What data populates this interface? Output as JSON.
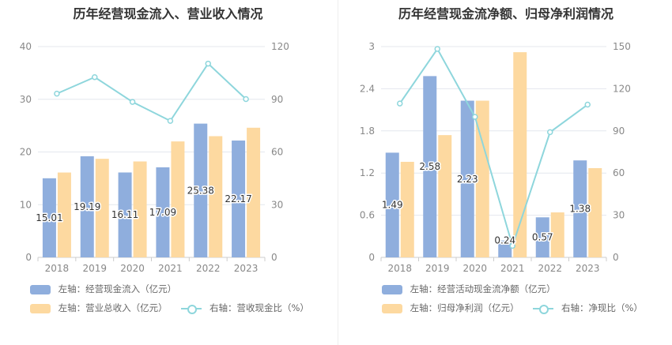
{
  "colors": {
    "bar1": "#8faedd",
    "bar2": "#fdd9a0",
    "line": "#8ed6dc",
    "grid": "#e4e7ee",
    "axis": "#cccccc"
  },
  "chart_data": [
    {
      "type": "bar",
      "title": "历年经营现金流入、营业收入情况",
      "categories": [
        "2018",
        "2019",
        "2020",
        "2021",
        "2022",
        "2023"
      ],
      "left_axis": {
        "ylim": [
          0,
          40
        ],
        "ticks": [
          "0",
          "10",
          "20",
          "30",
          "40"
        ]
      },
      "right_axis": {
        "ylim": [
          0,
          120
        ],
        "ticks": [
          "0",
          "30",
          "60",
          "90",
          "120"
        ]
      },
      "series": [
        {
          "name": "左轴：经营现金流入（亿元）",
          "kind": "bar",
          "axis": "left",
          "color": "#8faedd",
          "values": [
            15.01,
            19.19,
            16.11,
            17.09,
            25.38,
            22.17
          ],
          "labels": [
            "15.01",
            "19.19",
            "16.11",
            "17.09",
            "25.38",
            "22.17"
          ]
        },
        {
          "name": "左轴：营业总收入（亿元）",
          "kind": "bar",
          "axis": "left",
          "color": "#fdd9a0",
          "values": [
            16.1,
            18.7,
            18.2,
            22.0,
            23.0,
            24.6
          ]
        },
        {
          "name": "右轴：营收现金比（%）",
          "kind": "line",
          "axis": "right",
          "color": "#8ed6dc",
          "values": [
            93.2,
            102.6,
            88.5,
            77.7,
            110.3,
            90.1
          ]
        }
      ],
      "legend_rows": [
        [
          "左轴：经营现金流入（亿元）"
        ],
        [
          "左轴：营业总收入（亿元）",
          "右轴：营收现金比（%）"
        ]
      ]
    },
    {
      "type": "bar",
      "title": "历年经营现金流净额、归母净利润情况",
      "categories": [
        "2018",
        "2019",
        "2020",
        "2021",
        "2022",
        "2023"
      ],
      "left_axis": {
        "ylim": [
          0,
          3
        ],
        "ticks": [
          "0",
          "0.6",
          "1.2",
          "1.8",
          "2.4",
          "3"
        ]
      },
      "right_axis": {
        "ylim": [
          0,
          150
        ],
        "ticks": [
          "0",
          "30",
          "60",
          "90",
          "120",
          "150"
        ]
      },
      "series": [
        {
          "name": "左轴：经营活动现金流净额（亿元）",
          "kind": "bar",
          "axis": "left",
          "color": "#8faedd",
          "values": [
            1.49,
            2.58,
            2.23,
            0.24,
            0.57,
            1.38
          ],
          "labels": [
            "1.49",
            "2.58",
            "2.23",
            "0.24",
            "0.57",
            "1.38"
          ]
        },
        {
          "name": "左轴：归母净利润（亿元）",
          "kind": "bar",
          "axis": "left",
          "color": "#fdd9a0",
          "values": [
            1.36,
            1.74,
            2.23,
            2.92,
            0.64,
            1.27
          ]
        },
        {
          "name": "右轴：净现比（%）",
          "kind": "line",
          "axis": "right",
          "color": "#8ed6dc",
          "values": [
            109.5,
            148.3,
            100.0,
            8.2,
            89.1,
            108.7
          ]
        }
      ],
      "legend_rows": [
        [
          "左轴：经营活动现金流净额（亿元）"
        ],
        [
          "左轴：归母净利润（亿元）",
          "右轴：净现比（%）"
        ]
      ]
    }
  ]
}
